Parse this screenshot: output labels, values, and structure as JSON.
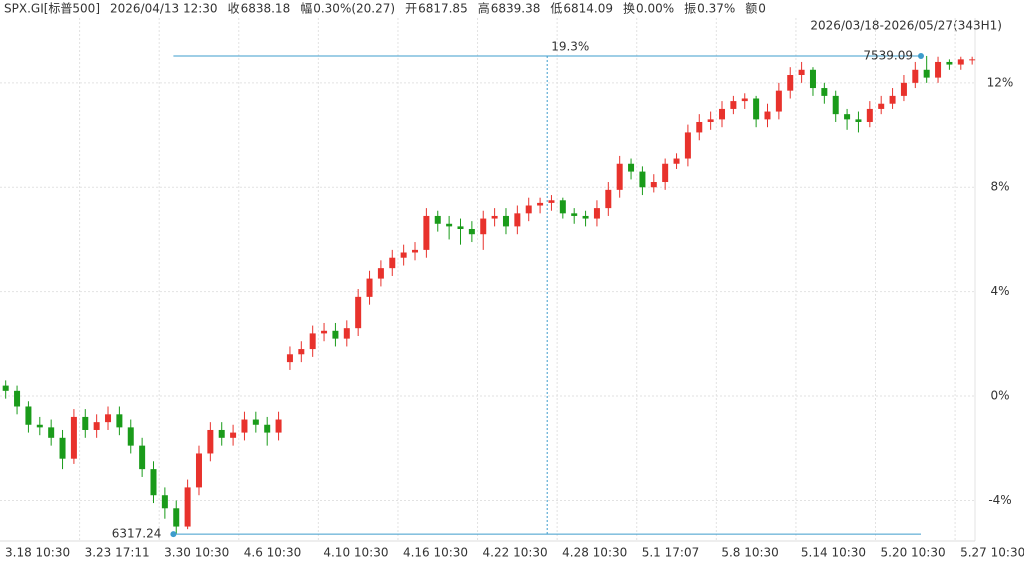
{
  "header": {
    "items": [
      {
        "text": "SPX.GI[标普500]",
        "color": "#333333"
      },
      {
        "text": "2026/04/13 12:30",
        "color": "#333333"
      },
      {
        "text": "收",
        "color": "#333333"
      },
      {
        "text": "6838.18",
        "color": "#d9262a"
      },
      {
        "text": "幅",
        "color": "#333333"
      },
      {
        "text": "0.30%(20.27)",
        "color": "#d9262a"
      },
      {
        "text": "开",
        "color": "#333333"
      },
      {
        "text": "6817.85",
        "color": "#1a9b1a"
      },
      {
        "text": "高",
        "color": "#333333"
      },
      {
        "text": "6839.38",
        "color": "#d9262a"
      },
      {
        "text": "低",
        "color": "#333333"
      },
      {
        "text": "6814.09",
        "color": "#1a9b1a"
      },
      {
        "text": "换",
        "color": "#333333"
      },
      {
        "text": "0.00%",
        "color": "#333333"
      },
      {
        "text": "振",
        "color": "#333333"
      },
      {
        "text": "0.37%",
        "color": "#333333"
      },
      {
        "text": "额",
        "color": "#333333"
      },
      {
        "text": "0",
        "color": "#333333"
      }
    ],
    "range": "2026/03/18-2026/05/27(343H1)"
  },
  "chart_data": {
    "type": "candlestick",
    "up_color": "#e8322c",
    "down_color": "#1a9b1a",
    "grid": true,
    "xlim": [
      0,
      343
    ],
    "ylim": [
      -5.5,
      14.3
    ],
    "xticks": [
      {
        "value": 0,
        "label": "3.18 10:30"
      },
      {
        "value": 28,
        "label": "3.23 17:11"
      },
      {
        "value": 56,
        "label": "3.30 10:30"
      },
      {
        "value": 84,
        "label": "4.6 10:30"
      },
      {
        "value": 112,
        "label": "4.10 10:30"
      },
      {
        "value": 140,
        "label": "4.16 10:30"
      },
      {
        "value": 168,
        "label": "4.22 10:30"
      },
      {
        "value": 196,
        "label": "4.28 10:30"
      },
      {
        "value": 224,
        "label": "5.1 17:07"
      },
      {
        "value": 252,
        "label": "5.8 10:30"
      },
      {
        "value": 280,
        "label": "5.14 10:30"
      },
      {
        "value": 308,
        "label": "5.20 10:30"
      },
      {
        "value": 336,
        "label": "5.27 10:30"
      }
    ],
    "yticks": [
      {
        "value": -4,
        "label": "-4%"
      },
      {
        "value": 0,
        "label": "0%"
      },
      {
        "value": 4,
        "label": "4%"
      },
      {
        "value": 8,
        "label": "8%"
      },
      {
        "value": 12,
        "label": "12%"
      }
    ],
    "x": [
      0,
      4,
      8,
      12,
      16,
      20,
      24,
      28,
      32,
      36,
      40,
      44,
      48,
      52,
      56,
      60,
      64,
      68,
      72,
      76,
      80,
      84,
      88,
      92,
      96,
      100,
      104,
      108,
      112,
      116,
      120,
      124,
      128,
      132,
      136,
      140,
      144,
      148,
      152,
      156,
      160,
      164,
      168,
      172,
      176,
      180,
      184,
      188,
      192,
      196,
      200,
      204,
      208,
      212,
      216,
      220,
      224,
      228,
      232,
      236,
      240,
      244,
      248,
      252,
      256,
      260,
      264,
      268,
      272,
      276,
      280,
      284,
      288,
      292,
      296,
      300,
      304,
      308,
      312,
      316,
      320,
      324,
      328,
      332,
      336,
      340
    ],
    "open": [
      0.4,
      0.2,
      -0.4,
      -1.1,
      -1.2,
      -1.6,
      -2.4,
      -0.8,
      -1.3,
      -1.0,
      -0.7,
      -1.2,
      -1.9,
      -2.8,
      -3.8,
      -4.3,
      -5.0,
      -3.5,
      -2.2,
      -1.3,
      -1.6,
      -1.4,
      -0.9,
      -1.1,
      -1.4,
      1.3,
      1.6,
      1.8,
      2.4,
      2.5,
      2.2,
      2.6,
      3.8,
      4.5,
      4.9,
      5.3,
      5.5,
      5.6,
      6.9,
      6.6,
      6.5,
      6.4,
      6.2,
      6.8,
      6.9,
      6.5,
      7.0,
      7.3,
      7.4,
      7.5,
      7.0,
      6.9,
      6.8,
      7.2,
      7.9,
      8.9,
      8.6,
      8.0,
      8.2,
      8.9,
      9.1,
      10.1,
      10.5,
      10.6,
      11.0,
      11.3,
      11.4,
      10.6,
      10.9,
      11.7,
      12.3,
      12.5,
      11.8,
      11.5,
      10.8,
      10.6,
      10.5,
      11.0,
      11.2,
      11.5,
      12.0,
      12.5,
      12.2,
      12.8,
      12.7,
      12.9
    ],
    "close": [
      0.2,
      -0.4,
      -1.1,
      -1.2,
      -1.6,
      -2.4,
      -0.8,
      -1.3,
      -1.0,
      -0.7,
      -1.2,
      -1.9,
      -2.8,
      -3.8,
      -4.3,
      -5.0,
      -3.5,
      -2.2,
      -1.3,
      -1.6,
      -1.4,
      -0.9,
      -1.1,
      -1.4,
      -0.9,
      1.6,
      1.8,
      2.4,
      2.5,
      2.2,
      2.6,
      3.8,
      4.5,
      4.9,
      5.3,
      5.5,
      5.6,
      6.9,
      6.6,
      6.5,
      6.4,
      6.2,
      6.8,
      6.9,
      6.5,
      7.0,
      7.3,
      7.4,
      7.5,
      7.0,
      6.9,
      6.8,
      7.2,
      7.9,
      8.9,
      8.6,
      8.0,
      8.2,
      8.9,
      9.1,
      10.1,
      10.5,
      10.6,
      11.0,
      11.3,
      11.4,
      10.6,
      10.9,
      11.7,
      12.3,
      12.5,
      11.8,
      11.5,
      10.8,
      10.6,
      10.5,
      11.0,
      11.2,
      11.5,
      12.0,
      12.5,
      12.2,
      12.8,
      12.7,
      12.9,
      12.9
    ],
    "high": [
      0.6,
      0.4,
      -0.2,
      -0.8,
      -0.9,
      -1.3,
      -0.5,
      -0.5,
      -0.7,
      -0.4,
      -0.4,
      -0.9,
      -1.6,
      -2.5,
      -3.5,
      -4.0,
      -3.2,
      -1.9,
      -1.0,
      -1.0,
      -1.1,
      -0.6,
      -0.6,
      -0.8,
      -0.6,
      1.9,
      2.1,
      2.7,
      2.8,
      2.8,
      2.9,
      4.1,
      4.8,
      5.2,
      5.6,
      5.8,
      5.9,
      7.2,
      7.1,
      6.9,
      6.8,
      6.7,
      7.1,
      7.2,
      7.2,
      7.3,
      7.6,
      7.6,
      7.7,
      7.6,
      7.2,
      7.1,
      7.5,
      8.2,
      9.2,
      9.1,
      8.8,
      8.5,
      9.1,
      9.3,
      10.4,
      10.8,
      10.9,
      11.3,
      11.5,
      11.6,
      11.5,
      11.2,
      12.0,
      12.6,
      12.8,
      12.6,
      12.0,
      11.7,
      11.0,
      10.9,
      11.3,
      11.5,
      11.8,
      12.3,
      12.8,
      13.03,
      13.0,
      12.9,
      13.0,
      13.0
    ],
    "low": [
      -0.1,
      -0.7,
      -1.4,
      -1.5,
      -1.9,
      -2.8,
      -2.6,
      -1.6,
      -1.6,
      -1.3,
      -1.5,
      -2.2,
      -3.1,
      -4.1,
      -4.7,
      -5.29,
      -5.1,
      -3.8,
      -2.5,
      -1.9,
      -1.9,
      -1.7,
      -1.4,
      -1.9,
      -1.7,
      1.0,
      1.3,
      1.5,
      2.1,
      1.9,
      1.9,
      2.3,
      3.5,
      4.2,
      4.6,
      5.0,
      5.2,
      5.3,
      6.3,
      6.0,
      5.8,
      5.9,
      5.6,
      6.5,
      6.2,
      6.2,
      6.7,
      7.0,
      7.1,
      6.8,
      6.6,
      6.5,
      6.5,
      6.9,
      7.6,
      8.3,
      7.7,
      7.8,
      7.9,
      8.7,
      8.8,
      9.8,
      10.2,
      10.3,
      10.8,
      11.0,
      10.3,
      10.3,
      10.6,
      11.4,
      12.0,
      11.5,
      11.2,
      10.5,
      10.2,
      10.1,
      10.3,
      10.8,
      11.0,
      11.3,
      11.8,
      12.0,
      12.0,
      12.5,
      12.5,
      12.7
    ],
    "range_marker": {
      "label": "19.3%",
      "color": "#3d9ccc",
      "x": [
        61,
        324
      ],
      "max": {
        "label": "7539.09",
        "value": 13.03,
        "color": "#d9262a"
      },
      "min": {
        "label": "6317.24",
        "value": -5.29,
        "color": "#1a9b1a"
      }
    }
  }
}
